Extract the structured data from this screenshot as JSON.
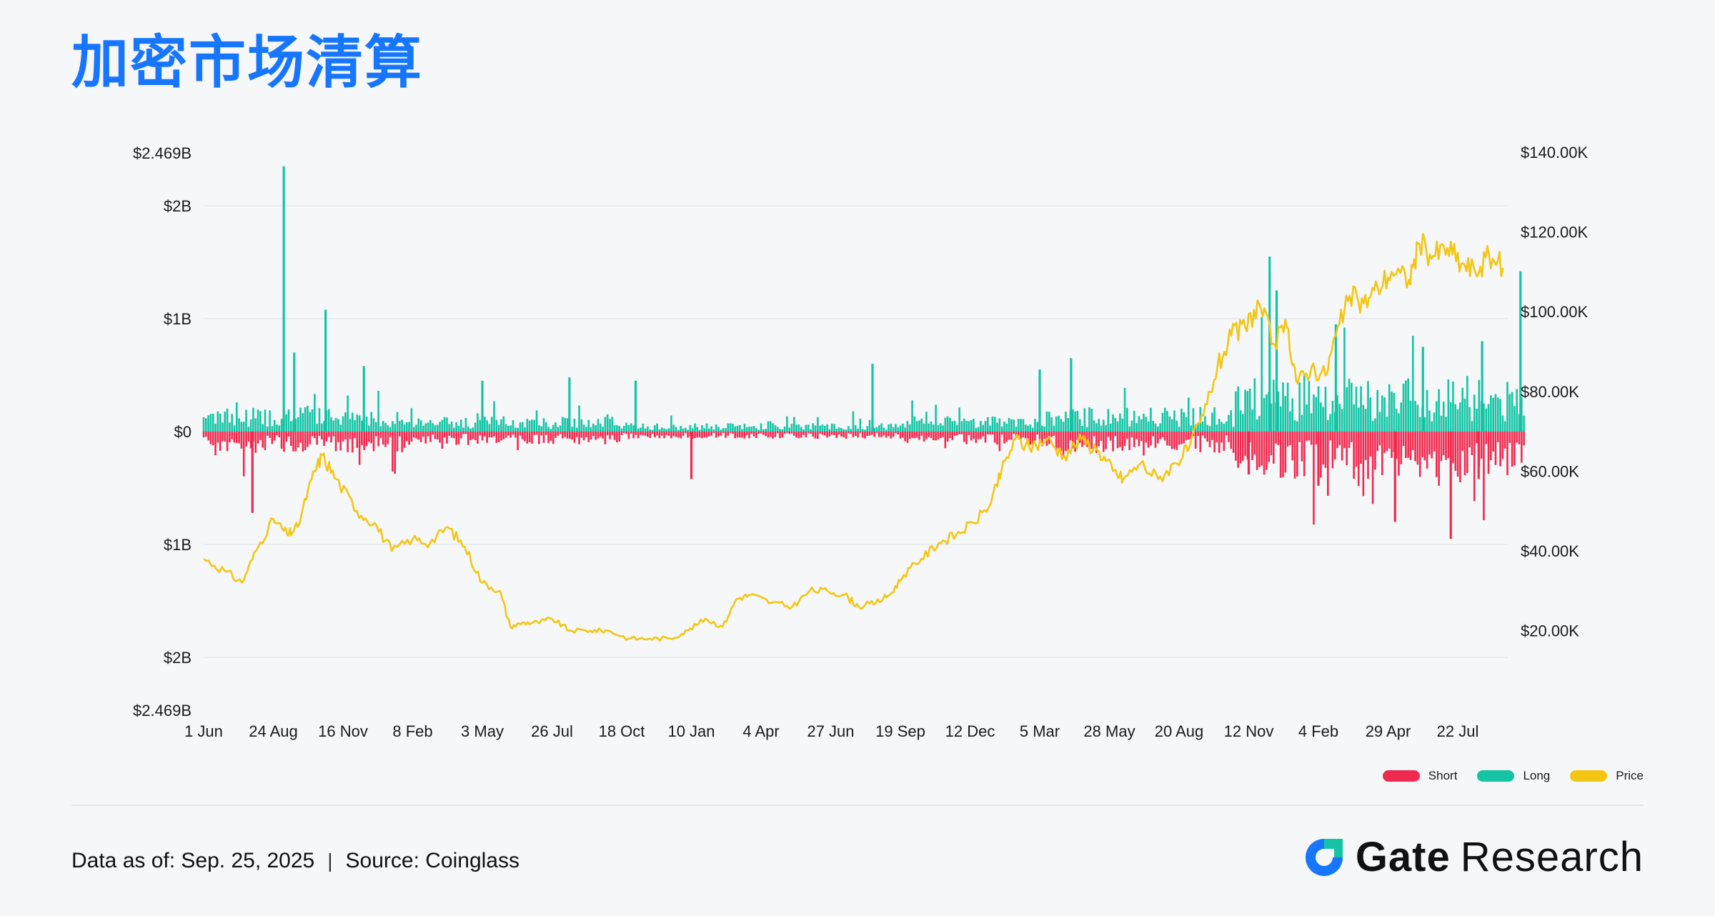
{
  "header": {
    "title": "加密市场清算"
  },
  "footer": {
    "data_as_of": "Data as of: Sep. 25, 2025",
    "separator": "|",
    "source": "Source: Coinglass",
    "brand_word1": "Gate",
    "brand_word2": "Research"
  },
  "colors": {
    "short": "#f0294e",
    "long": "#14c4a4",
    "price": "#f3c614",
    "title": "#1676ff"
  },
  "chart_data": {
    "type": "bar",
    "title": "",
    "legend": {
      "placement": "bottom-right",
      "entries": [
        "Short",
        "Long",
        "Price"
      ]
    },
    "x_tick_labels": [
      "1 Jun",
      "24 Aug",
      "16 Nov",
      "8 Feb",
      "3 May",
      "26 Jul",
      "18 Oct",
      "10 Jan",
      "4 Apr",
      "27 Jun",
      "19 Sep",
      "12 Dec",
      "5 Mar",
      "28 May",
      "20 Aug",
      "12 Nov",
      "4 Feb",
      "29 Apr",
      "22 Jul"
    ],
    "left_axis": {
      "tick_labels": [
        "$2.469B",
        "$2B",
        "$1B",
        "$0",
        "$1B",
        "$2B",
        "$2.469B"
      ],
      "tick_values": [
        2.469,
        2,
        1,
        0,
        -1,
        -2,
        -2.469
      ],
      "ylim": [
        -2.469,
        2.469
      ],
      "unit": "B USD"
    },
    "right_axis": {
      "tick_labels": [
        "$140.00K",
        "$120.00K",
        "$100.00K",
        "$80.00K",
        "$60.00K",
        "$40.00K",
        "$20.00K"
      ],
      "tick_values": [
        140,
        120,
        100,
        80,
        60,
        40,
        20
      ],
      "ylim": [
        0,
        140
      ],
      "unit": "K USD"
    },
    "grid": "horizontal",
    "series": [
      {
        "name": "Long",
        "type": "bar",
        "baseline_level": 0.08,
        "spikes": [
          {
            "x": 1.15,
            "value": 2.35
          },
          {
            "x": 1.3,
            "value": 0.7
          },
          {
            "x": 1.75,
            "value": 1.08
          },
          {
            "x": 2.3,
            "value": 0.58
          },
          {
            "x": 4.0,
            "value": 0.45
          },
          {
            "x": 5.25,
            "value": 0.48
          },
          {
            "x": 6.2,
            "value": 0.45
          },
          {
            "x": 9.6,
            "value": 0.6
          },
          {
            "x": 12.0,
            "value": 0.55
          },
          {
            "x": 12.45,
            "value": 0.65
          },
          {
            "x": 15.3,
            "value": 1.55
          },
          {
            "x": 15.4,
            "value": 1.25
          },
          {
            "x": 16.25,
            "value": 0.95
          },
          {
            "x": 17.5,
            "value": 0.75
          },
          {
            "x": 18.35,
            "value": 0.8
          },
          {
            "x": 18.9,
            "value": 1.42
          }
        ]
      },
      {
        "name": "Short",
        "type": "bar",
        "baseline_level": -0.07,
        "spikes": [
          {
            "x": 0.7,
            "value": -0.72
          },
          {
            "x": 7.0,
            "value": -0.42
          },
          {
            "x": 15.0,
            "value": -0.38
          },
          {
            "x": 16.0,
            "value": -0.48
          },
          {
            "x": 17.1,
            "value": -0.8
          },
          {
            "x": 17.9,
            "value": -0.95
          },
          {
            "x": 18.3,
            "value": -0.42
          }
        ]
      },
      {
        "name": "Price",
        "type": "line",
        "axis": "right",
        "points": [
          [
            0.0,
            38
          ],
          [
            0.3,
            35
          ],
          [
            0.55,
            32
          ],
          [
            0.75,
            40
          ],
          [
            1.0,
            48
          ],
          [
            1.2,
            44
          ],
          [
            1.35,
            46
          ],
          [
            1.55,
            58
          ],
          [
            1.7,
            64
          ],
          [
            1.9,
            58
          ],
          [
            2.2,
            50
          ],
          [
            2.45,
            47
          ],
          [
            2.7,
            40
          ],
          [
            3.0,
            43
          ],
          [
            3.25,
            42
          ],
          [
            3.5,
            46
          ],
          [
            3.75,
            41
          ],
          [
            4.0,
            32
          ],
          [
            4.25,
            30
          ],
          [
            4.4,
            21
          ],
          [
            4.6,
            22
          ],
          [
            4.8,
            22
          ],
          [
            5.0,
            23
          ],
          [
            5.25,
            20
          ],
          [
            5.55,
            20
          ],
          [
            5.8,
            20
          ],
          [
            6.1,
            18
          ],
          [
            6.4,
            18
          ],
          [
            6.7,
            18
          ],
          [
            6.95,
            20
          ],
          [
            7.2,
            23
          ],
          [
            7.45,
            21
          ],
          [
            7.65,
            28
          ],
          [
            7.85,
            29
          ],
          [
            8.15,
            27
          ],
          [
            8.45,
            26
          ],
          [
            8.7,
            30
          ],
          [
            8.95,
            30
          ],
          [
            9.2,
            29
          ],
          [
            9.4,
            26
          ],
          [
            9.65,
            27
          ],
          [
            9.85,
            29
          ],
          [
            10.05,
            34
          ],
          [
            10.3,
            38
          ],
          [
            10.55,
            42
          ],
          [
            10.8,
            44
          ],
          [
            11.05,
            47
          ],
          [
            11.3,
            52
          ],
          [
            11.45,
            60
          ],
          [
            11.65,
            68
          ],
          [
            11.85,
            66
          ],
          [
            12.1,
            68
          ],
          [
            12.35,
            64
          ],
          [
            12.6,
            68
          ],
          [
            12.85,
            65
          ],
          [
            13.05,
            60
          ],
          [
            13.2,
            58
          ],
          [
            13.45,
            62
          ],
          [
            13.7,
            58
          ],
          [
            13.95,
            62
          ],
          [
            14.15,
            66
          ],
          [
            14.35,
            74
          ],
          [
            14.55,
            86
          ],
          [
            14.75,
            94
          ],
          [
            14.95,
            96
          ],
          [
            15.15,
            102
          ],
          [
            15.35,
            92
          ],
          [
            15.55,
            96
          ],
          [
            15.7,
            82
          ],
          [
            15.9,
            86
          ],
          [
            16.1,
            84
          ],
          [
            16.25,
            94
          ],
          [
            16.45,
            104
          ],
          [
            16.65,
            102
          ],
          [
            16.85,
            106
          ],
          [
            17.05,
            110
          ],
          [
            17.3,
            108
          ],
          [
            17.45,
            117
          ],
          [
            17.65,
            114
          ],
          [
            17.85,
            116
          ],
          [
            18.05,
            112
          ],
          [
            18.25,
            110
          ],
          [
            18.45,
            114
          ],
          [
            18.65,
            111
          ]
        ]
      }
    ]
  }
}
